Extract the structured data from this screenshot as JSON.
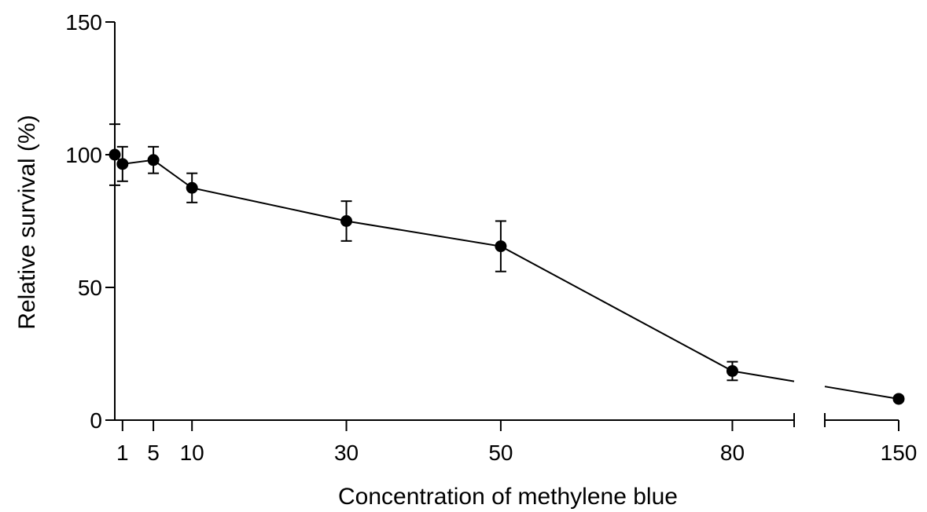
{
  "chart_data": {
    "type": "line",
    "title": "",
    "xlabel": "Concentration of methylene blue",
    "ylabel": "Relative survival (%)",
    "ylim": [
      0,
      150
    ],
    "y_ticks": [
      0,
      50,
      100,
      150
    ],
    "x_ticks": [
      1,
      5,
      10,
      30,
      50,
      80,
      150
    ],
    "x_axis_break": true,
    "grid": false,
    "legend": "none",
    "marker_color": "#000000",
    "series": [
      {
        "x": [
          0,
          1,
          5,
          10,
          30,
          50,
          80,
          150
        ],
        "y": [
          100,
          96.5,
          98,
          87.5,
          75,
          65.5,
          18.5,
          8
        ],
        "err": [
          11.5,
          6.5,
          5,
          5.5,
          7.5,
          9.5,
          3.5,
          0
        ]
      }
    ]
  }
}
